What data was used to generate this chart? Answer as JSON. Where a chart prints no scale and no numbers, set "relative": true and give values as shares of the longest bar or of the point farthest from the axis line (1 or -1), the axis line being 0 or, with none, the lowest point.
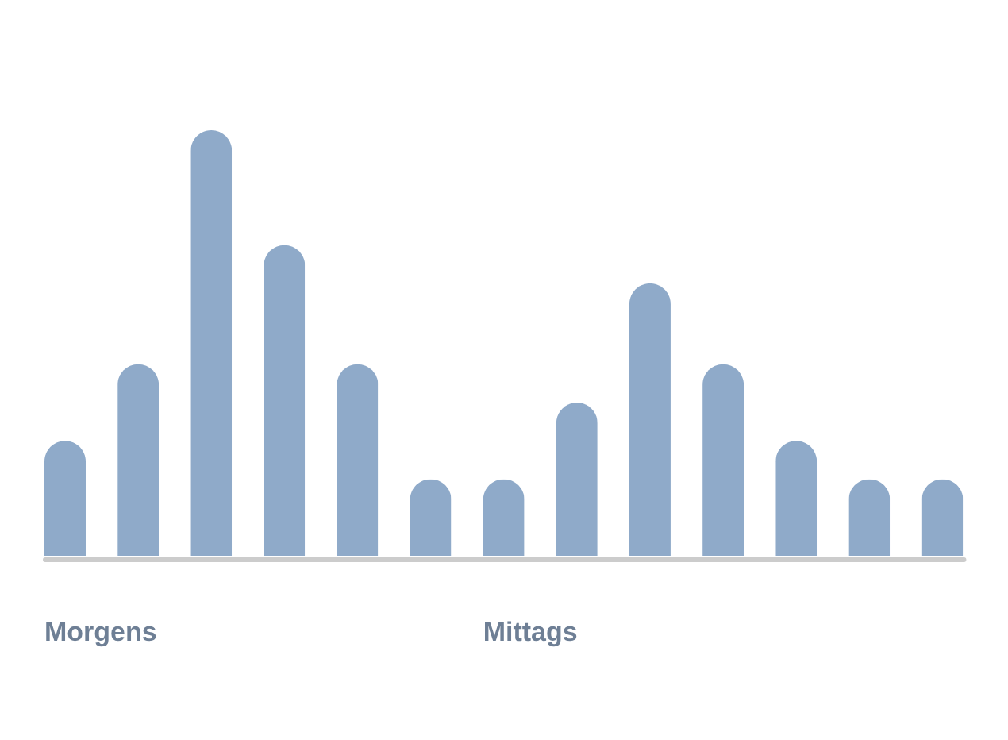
{
  "chart_data": {
    "type": "bar",
    "relative": true,
    "color": "#8faac9",
    "categories": [
      "Morgens",
      null,
      null,
      null,
      null,
      null,
      "Mittags",
      null,
      null,
      null,
      null,
      null,
      null
    ],
    "values": [
      0.27,
      0.45,
      1,
      0.73,
      0.45,
      0.18,
      0.18,
      0.36,
      0.64,
      0.45,
      0.27,
      0.18,
      0.18
    ]
  }
}
